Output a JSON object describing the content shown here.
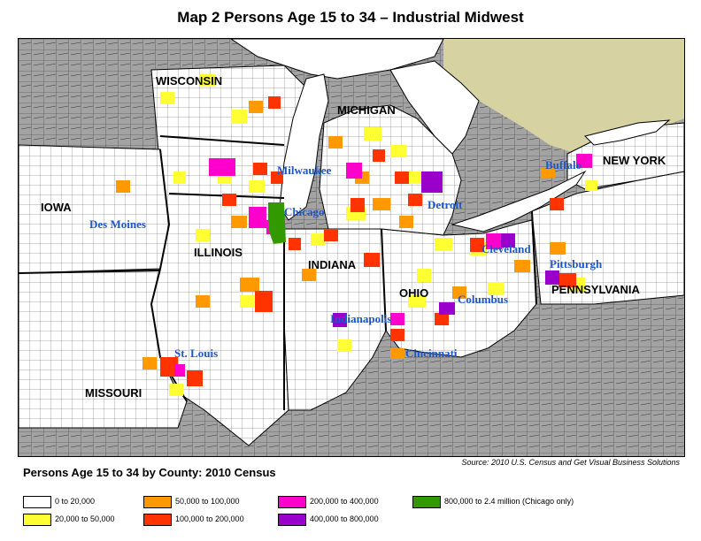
{
  "title": "Map 2   Persons Age 15 to 34 – Industrial Midwest",
  "legend_title": "Persons Age 15 to 34 by County: 2010 Census",
  "source": "Source: 2010 U.S. Census and Get Visual Business Solutions",
  "legend": [
    {
      "label": "0 to 20,000",
      "color": "#ffffff"
    },
    {
      "label": "20,000 to 50,000",
      "color": "#ffff33"
    },
    {
      "label": "50,000 to 100,000",
      "color": "#ff9900"
    },
    {
      "label": "100,000 to 200,000",
      "color": "#ff3300"
    },
    {
      "label": "200,000 to 400,000",
      "color": "#ff00cc"
    },
    {
      "label": "400,000 to 800,000",
      "color": "#9900cc"
    },
    {
      "label": "800,000 to 2.4 million (Chicago only)",
      "color": "#339900"
    }
  ],
  "states": {
    "wisconsin": "WISCONSIN",
    "michigan": "MICHIGAN",
    "new_york": "NEW YORK",
    "iowa": "IOWA",
    "illinois": "ILLINOIS",
    "indiana": "INDIANA",
    "ohio": "OHIO",
    "pennsylvania": "PENNSYLVANIA",
    "missouri": "MISSOURI"
  },
  "cities": {
    "milwaukee": "Milwaukee",
    "chicago": "Chicago",
    "detroit": "Detroit",
    "buffalo": "Buffalo",
    "des_moines": "Des Moines",
    "cleveland": "Cleveland",
    "pittsburgh": "Pittsburgh",
    "columbus": "Columbus",
    "indianapolis": "Indianapolis",
    "cincinnati": "Cincinnati",
    "st_louis": "St. Louis"
  },
  "colors": {
    "outside": "#a3a3a3",
    "water": "#ffffff",
    "canada": "#d6d2a2",
    "study_area": "#ffffff",
    "city_label": "#1f57c6"
  }
}
